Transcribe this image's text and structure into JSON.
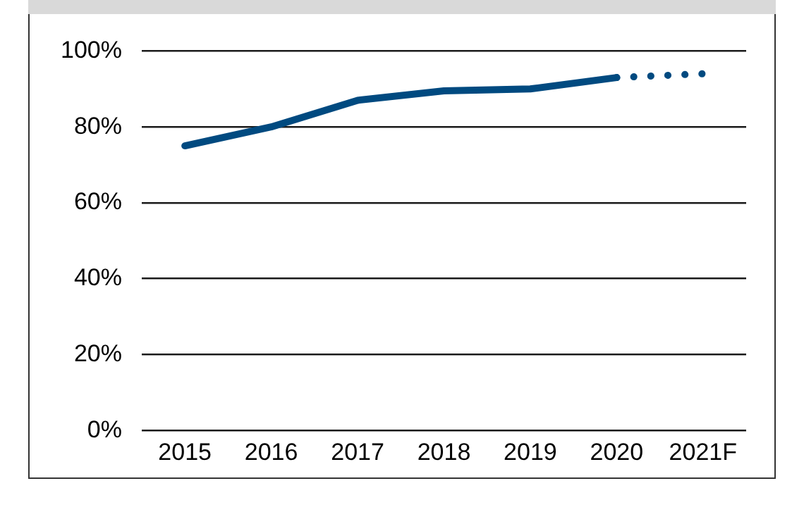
{
  "chart_data": {
    "type": "line",
    "categories": [
      "2015",
      "2016",
      "2017",
      "2018",
      "2019",
      "2020",
      "2021F"
    ],
    "series": [
      {
        "color": "#004a80",
        "values": [
          75,
          80,
          87,
          89.5,
          90,
          93,
          null
        ],
        "line_style": "solid"
      },
      {
        "color": "#004a80",
        "values": [
          null,
          null,
          null,
          null,
          null,
          93,
          94
        ],
        "line_style": "dotted"
      }
    ],
    "ylim": [
      0,
      100
    ],
    "yticks": [
      {
        "value": 0,
        "label": "0%"
      },
      {
        "value": 20,
        "label": "20%"
      },
      {
        "value": 40,
        "label": "40%"
      },
      {
        "value": 60,
        "label": "60%"
      },
      {
        "value": 80,
        "label": "80%"
      },
      {
        "value": 100,
        "label": "100%"
      }
    ],
    "grid": "y",
    "legend": false,
    "marker": "none"
  }
}
